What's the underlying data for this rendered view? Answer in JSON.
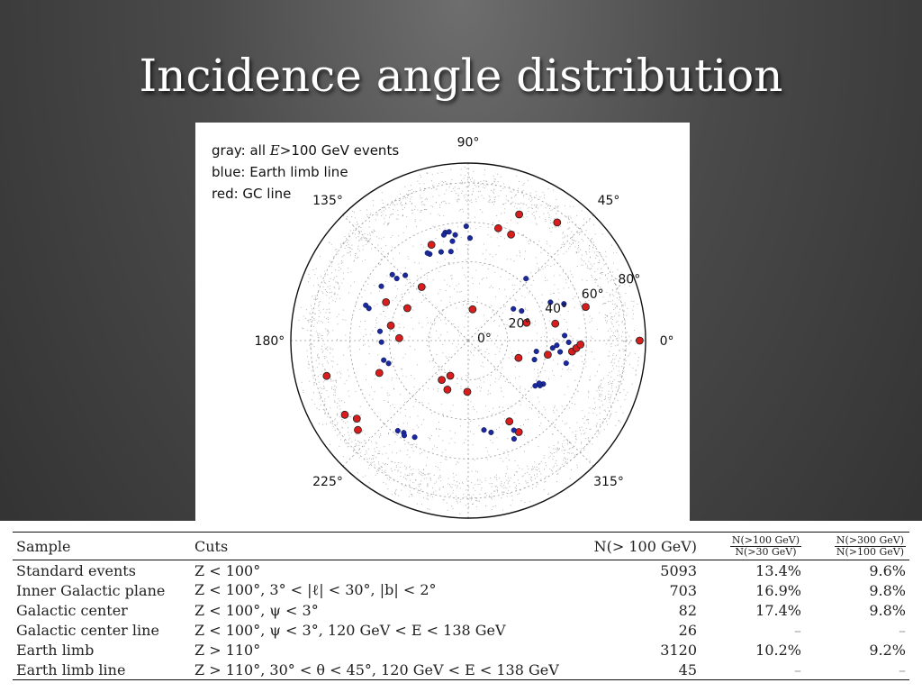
{
  "slide": {
    "title": "Incidence angle distribution"
  },
  "chart_data": {
    "type": "scatter",
    "projection": "polar",
    "legend_text": [
      {
        "prefix": "gray: all ",
        "italic": "E",
        "suffix": ">100 GeV events"
      },
      {
        "prefix": "blue: Earth limb line",
        "italic": "",
        "suffix": ""
      },
      {
        "prefix": "red: GC line",
        "italic": "",
        "suffix": ""
      }
    ],
    "angle_labels": [
      "0°",
      "45°",
      "90°",
      "135°",
      "180°",
      "225°",
      "315°"
    ],
    "radial_labels": [
      "0°",
      "20°",
      "40°",
      "60°",
      "80°"
    ],
    "rlim": [
      0,
      90
    ],
    "grid": true,
    "colors": {
      "all": "#8a8a8a",
      "earth_limb": "#1a2a9c",
      "gc": "#d91c1c"
    },
    "series": [
      {
        "name": "GC line",
        "color": "#d91c1c",
        "points": [
          [
            0,
            87
          ],
          [
            53,
            75
          ],
          [
            82,
            16
          ],
          [
            68,
            69
          ],
          [
            68,
            58
          ],
          [
            75,
            59
          ],
          [
            16,
            62
          ],
          [
            111,
            52
          ],
          [
            131,
            36
          ],
          [
            155,
            46
          ],
          [
            169,
            40
          ],
          [
            178,
            35
          ],
          [
            152,
            35
          ],
          [
            194,
            74
          ],
          [
            211,
            73
          ],
          [
            215,
            69
          ],
          [
            219,
            72
          ],
          [
            200,
            48
          ],
          [
            243,
            20
          ],
          [
            236,
            24
          ],
          [
            247,
            27
          ],
          [
            269,
            26
          ],
          [
            297,
            46
          ],
          [
            299,
            53
          ],
          [
            11,
            45
          ],
          [
            17,
            31
          ],
          [
            354,
            53
          ],
          [
            356,
            55
          ],
          [
            358,
            57
          ],
          [
            350,
            41
          ],
          [
            341,
            27
          ]
        ]
      },
      {
        "name": "Earth limb line",
        "color": "#1a2a9c",
        "points": [
          [
            102,
            56
          ],
          [
            100,
            56
          ],
          [
            103,
            55
          ],
          [
            99,
            51
          ],
          [
            97,
            54
          ],
          [
            107,
            47
          ],
          [
            114,
            48
          ],
          [
            115,
            49
          ],
          [
            101,
            46
          ],
          [
            89,
            52
          ],
          [
            91,
            58
          ],
          [
            47,
            43
          ],
          [
            134,
            46
          ],
          [
            139,
            48
          ],
          [
            139,
            51
          ],
          [
            148,
            52
          ],
          [
            161,
            55
          ],
          [
            162,
            53
          ],
          [
            174,
            45
          ],
          [
            181,
            44
          ],
          [
            193,
            44
          ],
          [
            196,
            42
          ],
          [
            232,
            58
          ],
          [
            235,
            57
          ],
          [
            241,
            56
          ],
          [
            236,
            58
          ],
          [
            280,
            46
          ],
          [
            284,
            48
          ],
          [
            295,
            55
          ],
          [
            297,
            51
          ],
          [
            330,
            44
          ],
          [
            328,
            43
          ],
          [
            329,
            42
          ],
          [
            326,
            41
          ],
          [
            344,
            35
          ],
          [
            351,
            35
          ],
          [
            355,
            43
          ],
          [
            357,
            45
          ],
          [
            359,
            51
          ],
          [
            3,
            49
          ],
          [
            21,
            52
          ],
          [
            25,
            46
          ],
          [
            29,
            31
          ],
          [
            35,
            28
          ],
          [
            353,
            47
          ],
          [
            347,
            51
          ]
        ]
      }
    ]
  },
  "table": {
    "headers": {
      "sample": "Sample",
      "cuts": "Cuts",
      "n": "N(> 100 GeV)",
      "ratio1_num": "N(>100 GeV)",
      "ratio1_den": "N(>30 GeV)",
      "ratio2_num": "N(>300 GeV)",
      "ratio2_den": "N(>100 GeV)"
    },
    "rows": [
      {
        "sample": "Standard events",
        "cuts": "Z < 100°",
        "n": "5093",
        "r1": "13.4%",
        "r2": "9.6%"
      },
      {
        "sample": "Inner Galactic plane",
        "cuts": "Z < 100°, 3° < |ℓ| < 30°,  |b| < 2°",
        "n": "703",
        "r1": "16.9%",
        "r2": "9.8%"
      },
      {
        "sample": "Galactic center",
        "cuts": "Z < 100°, ψ < 3°",
        "n": "82",
        "r1": "17.4%",
        "r2": "9.8%"
      },
      {
        "sample": "Galactic center line",
        "cuts": "Z < 100°, ψ < 3°, 120 GeV < E < 138 GeV",
        "n": "26",
        "r1": "–",
        "r2": "–"
      },
      {
        "sample": "Earth limb",
        "cuts": "Z > 110°",
        "n": "3120",
        "r1": "10.2%",
        "r2": "9.2%"
      },
      {
        "sample": "Earth limb line",
        "cuts": "Z > 110°, 30° < θ < 45°, 120 GeV < E < 138 GeV",
        "n": "45",
        "r1": "–",
        "r2": "–"
      }
    ]
  }
}
